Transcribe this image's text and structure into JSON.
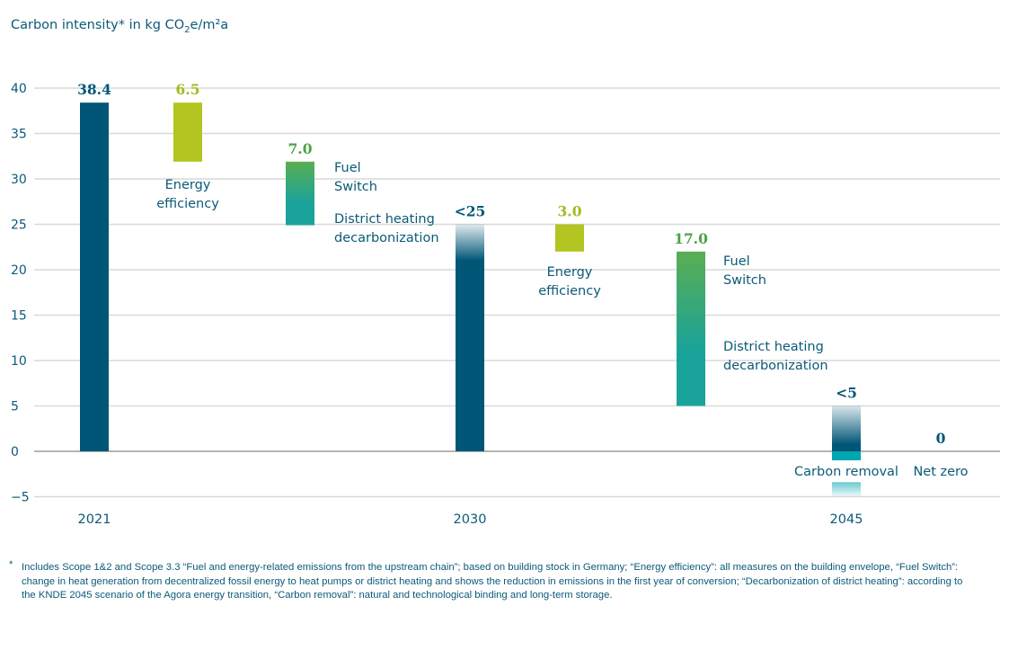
{
  "chart_data": {
    "type": "waterfall",
    "title": "Carbon intensity* in kg CO2e/m²a",
    "title_parts": {
      "pre": "Carbon intensity* in kg CO",
      "sub": "2",
      "post": "e/m²a"
    },
    "ylim": [
      -5,
      40
    ],
    "yticks": [
      -5,
      0,
      5,
      10,
      15,
      20,
      25,
      30,
      35,
      40
    ],
    "ytick_labels": [
      "−5",
      "0",
      "5",
      "10",
      "15",
      "20",
      "25",
      "30",
      "35",
      "40"
    ],
    "grid": true,
    "categories": [
      "2021",
      "2030",
      "2045"
    ],
    "bars": [
      {
        "id": "2021",
        "from": 0,
        "to": 38.4,
        "value_label": "38.4",
        "style": "total",
        "label": ""
      },
      {
        "id": "ee-1",
        "from": 38.4,
        "to": 31.9,
        "value_label": "6.5",
        "style": "efficiency",
        "label": "Energy efficiency"
      },
      {
        "id": "fs-1",
        "from": 31.9,
        "to": 24.9,
        "value_label": "7.0",
        "style": "fuel-switch",
        "label": "Fuel Switch",
        "label2": "District heating decarbonization"
      },
      {
        "id": "2030",
        "from": 0,
        "to": 25,
        "value_label": "<25",
        "style": "total-faded",
        "label": ""
      },
      {
        "id": "ee-2",
        "from": 25,
        "to": 22,
        "value_label": "3.0",
        "style": "efficiency",
        "label": "Energy efficiency"
      },
      {
        "id": "fs-2",
        "from": 22,
        "to": 5,
        "value_label": "17.0",
        "style": "fuel-switch",
        "label": "Fuel Switch",
        "label2": "District heating decarbonization"
      },
      {
        "id": "2045",
        "from": 0,
        "to": 5,
        "value_label": "<5",
        "style": "total-faded",
        "label": ""
      },
      {
        "id": "removal",
        "from": 0,
        "to": -5,
        "value_label": "",
        "style": "removal",
        "label": "Carbon removal"
      },
      {
        "id": "net-zero",
        "from": 0,
        "to": 0,
        "value_label": "0",
        "style": "none",
        "label": "Net zero"
      }
    ],
    "colors": {
      "total": "#005677",
      "efficiency": "#b2c520",
      "fuel_switch_top": "#5aae52",
      "fuel_switch_bottom": "#1aa39b",
      "removal": "#00a6b2",
      "value_label_efficiency": "#a4b81c",
      "value_label_fuel": "#4aa447",
      "text": "#0b5a78",
      "grid": "#d9d9d9"
    }
  },
  "footnote": {
    "marker": "*",
    "text": "Includes Scope 1&2 and Scope 3.3 “Fuel and energy-related emissions from the upstream chain”; based on building stock in Germany; “Energy efficiency”: all measures on the building envelope, “Fuel Switch”: change in heat generation from decentralized fossil energy to heat pumps or district heating and shows the reduction in emissions in the first year of conversion; “Decarbonization of district heating”: according to the KNDE 2045 scenario of the Agora energy transition, “Carbon removal”: natural and technological binding and long-term storage."
  }
}
